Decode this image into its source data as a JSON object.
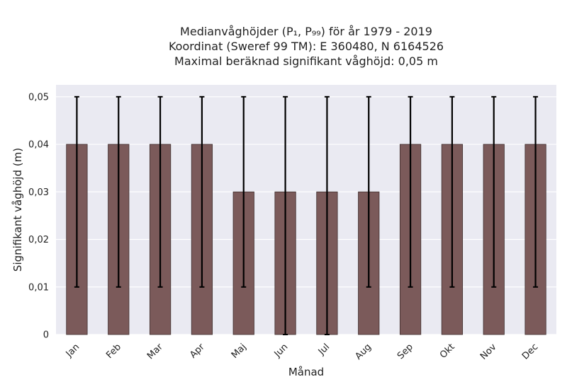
{
  "chart_data": {
    "type": "bar",
    "title_lines": [
      "Medianvåghöjder (P₁, P₉₉) för år 1979 - 2019",
      "Koordinat (Sweref 99 TM): E 360480, N 6164526",
      "Maximal beräknad signifikant våghöjd: 0,05 m"
    ],
    "xlabel": "Månad",
    "ylabel": "Signifikant våghöjd (m)",
    "categories": [
      "Jan",
      "Feb",
      "Mar",
      "Apr",
      "Maj",
      "Jun",
      "Jul",
      "Aug",
      "Sep",
      "Okt",
      "Nov",
      "Dec"
    ],
    "series": [
      {
        "values": [
          0.04,
          0.04,
          0.04,
          0.04,
          0.03,
          0.03,
          0.03,
          0.03,
          0.04,
          0.04,
          0.04,
          0.04
        ],
        "error_low": [
          0.01,
          0.01,
          0.01,
          0.01,
          0.01,
          0.0,
          0.0,
          0.01,
          0.01,
          0.01,
          0.01,
          0.01
        ],
        "error_high": [
          0.05,
          0.05,
          0.05,
          0.05,
          0.05,
          0.05,
          0.05,
          0.05,
          0.05,
          0.05,
          0.05,
          0.05
        ]
      }
    ],
    "ylim": [
      0,
      0.0525
    ],
    "yticks": [
      0,
      0.01,
      0.02,
      0.03,
      0.04,
      0.05
    ],
    "ytick_labels": [
      "0",
      "0,01",
      "0,02",
      "0,03",
      "0,04",
      "0,05"
    ],
    "grid": true,
    "colors": {
      "bar": "#7b5a5a",
      "bar_edge": "#3f2f2f",
      "errorbar": "#000000",
      "plot_background": "#eaeaf2",
      "grid": "#ffffff"
    }
  }
}
